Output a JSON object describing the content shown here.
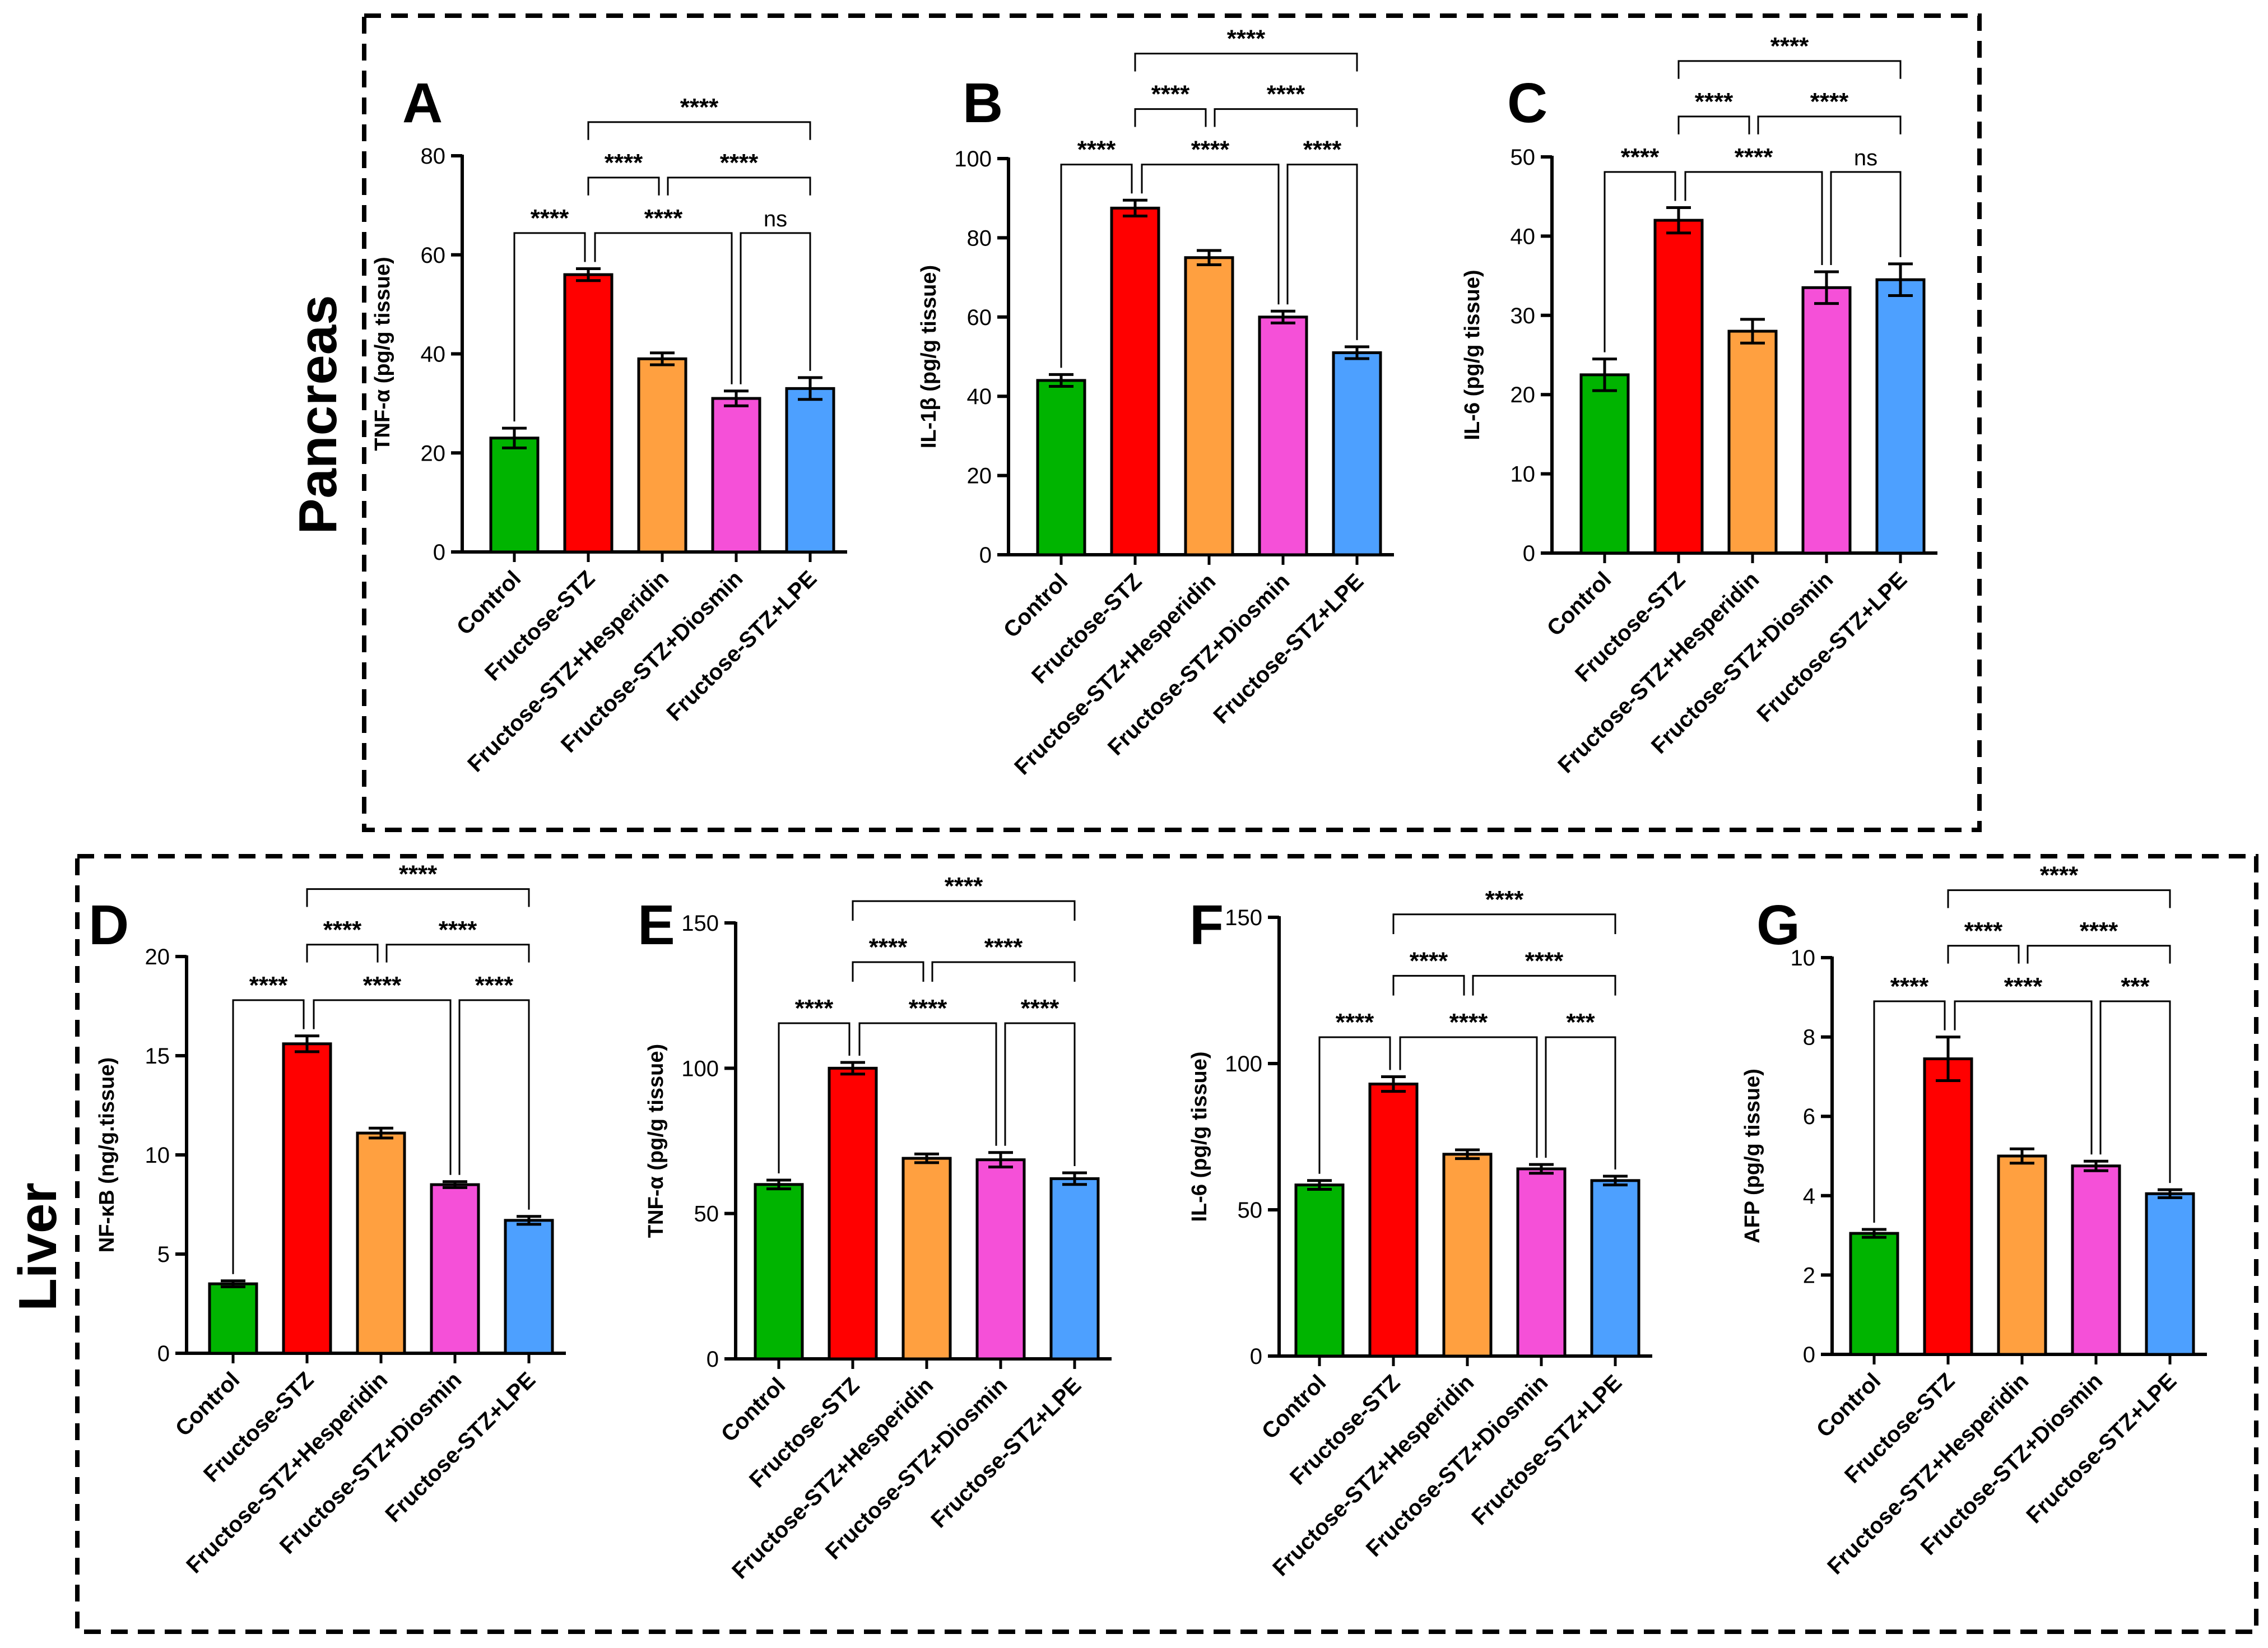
{
  "sections": {
    "pancreas": "Pancreas",
    "liver": "Liver"
  },
  "categories": [
    "Control",
    "Fructose-STZ",
    "Fructose-STZ+Hesperidin",
    "Fructose-STZ+Diosmin",
    "Fructose-STZ+LPE"
  ],
  "colors": {
    "bars": [
      "#00b400",
      "#ff0000",
      "#ffa040",
      "#f550d8",
      "#4da0ff"
    ],
    "axis": "#000000",
    "box": "#000000"
  },
  "chart_data": [
    {
      "panel": "A",
      "type": "bar",
      "section": "pancreas",
      "ylabel": "TNF-α (pg/g tissue)",
      "ylim": [
        0,
        80
      ],
      "yticks": [
        0,
        20,
        40,
        60,
        80
      ],
      "ytick_labels": [
        "0",
        "20",
        "40",
        "60",
        "80"
      ],
      "values": [
        23,
        56,
        39,
        31,
        33
      ],
      "errors": [
        2,
        1.2,
        1.2,
        1.5,
        2.2
      ],
      "brackets": [
        {
          "from": 1,
          "to": 4,
          "label": "****"
        },
        {
          "from": 1,
          "to": 2,
          "label": "****"
        },
        {
          "from": 2,
          "to": 4,
          "label": "****"
        },
        {
          "from": 0,
          "to": 1,
          "label": "****"
        },
        {
          "from": 1,
          "to": 3,
          "label": "****"
        },
        {
          "from": 3,
          "to": 4,
          "label": "ns"
        }
      ]
    },
    {
      "panel": "B",
      "type": "bar",
      "section": "pancreas",
      "ylabel": "IL-1β (pg/g tissue)",
      "ylim": [
        0,
        100
      ],
      "yticks": [
        0,
        20,
        40,
        60,
        80,
        100
      ],
      "ytick_labels": [
        "0",
        "20",
        "40",
        "60",
        "80",
        "100"
      ],
      "values": [
        44,
        87.5,
        75,
        60,
        51
      ],
      "errors": [
        1.5,
        2,
        1.8,
        1.5,
        1.5
      ],
      "brackets": [
        {
          "from": 1,
          "to": 4,
          "label": "****"
        },
        {
          "from": 1,
          "to": 2,
          "label": "****"
        },
        {
          "from": 2,
          "to": 4,
          "label": "****"
        },
        {
          "from": 0,
          "to": 1,
          "label": "****"
        },
        {
          "from": 1,
          "to": 3,
          "label": "****"
        },
        {
          "from": 3,
          "to": 4,
          "label": "****"
        }
      ]
    },
    {
      "panel": "C",
      "type": "bar",
      "section": "pancreas",
      "ylabel": "IL-6 (pg/g tissue)",
      "ylim": [
        0,
        50
      ],
      "yticks": [
        0,
        10,
        20,
        30,
        40,
        50
      ],
      "ytick_labels": [
        "0",
        "10",
        "20",
        "30",
        "40",
        "50"
      ],
      "values": [
        22.5,
        42,
        28,
        33.5,
        34.5
      ],
      "errors": [
        2,
        1.6,
        1.5,
        2,
        2
      ],
      "brackets": [
        {
          "from": 1,
          "to": 4,
          "label": "****"
        },
        {
          "from": 1,
          "to": 2,
          "label": "****"
        },
        {
          "from": 2,
          "to": 4,
          "label": "****"
        },
        {
          "from": 0,
          "to": 1,
          "label": "****"
        },
        {
          "from": 1,
          "to": 3,
          "label": "****"
        },
        {
          "from": 3,
          "to": 4,
          "label": "ns"
        }
      ]
    },
    {
      "panel": "D",
      "type": "bar",
      "section": "liver",
      "ylabel": "NF-κB (ng/g.tissue)",
      "ylim": [
        0,
        20
      ],
      "yticks": [
        0,
        5,
        10,
        15,
        20
      ],
      "ytick_labels": [
        "0",
        "5",
        "10",
        "15",
        "20"
      ],
      "values": [
        3.5,
        15.6,
        11.1,
        8.5,
        6.7
      ],
      "errors": [
        0.15,
        0.4,
        0.25,
        0.15,
        0.2
      ],
      "brackets": [
        {
          "from": 1,
          "to": 4,
          "label": "****"
        },
        {
          "from": 1,
          "to": 2,
          "label": "****"
        },
        {
          "from": 2,
          "to": 4,
          "label": "****"
        },
        {
          "from": 0,
          "to": 1,
          "label": "****"
        },
        {
          "from": 1,
          "to": 3,
          "label": "****"
        },
        {
          "from": 3,
          "to": 4,
          "label": "****"
        }
      ]
    },
    {
      "panel": "E",
      "type": "bar",
      "section": "liver",
      "ylabel": "TNF-α (pg/g tissue)",
      "ylim": [
        0,
        150
      ],
      "yticks": [
        0,
        50,
        100,
        150
      ],
      "ytick_labels": [
        "0",
        "50",
        "100",
        "150"
      ],
      "values": [
        60,
        100,
        69,
        68.5,
        62
      ],
      "errors": [
        1.5,
        2,
        1.5,
        2.5,
        2
      ],
      "brackets": [
        {
          "from": 1,
          "to": 4,
          "label": "****"
        },
        {
          "from": 1,
          "to": 2,
          "label": "****"
        },
        {
          "from": 2,
          "to": 4,
          "label": "****"
        },
        {
          "from": 0,
          "to": 1,
          "label": "****"
        },
        {
          "from": 1,
          "to": 3,
          "label": "****"
        },
        {
          "from": 3,
          "to": 4,
          "label": "****"
        }
      ]
    },
    {
      "panel": "F",
      "type": "bar",
      "section": "liver",
      "ylabel": "IL-6 (pg/g tissue)",
      "ylim": [
        0,
        150
      ],
      "yticks": [
        0,
        50,
        100,
        150
      ],
      "ytick_labels": [
        "0",
        "50",
        "100",
        "150"
      ],
      "values": [
        58.5,
        93,
        69,
        64,
        60
      ],
      "errors": [
        1.5,
        2.5,
        1.5,
        1.5,
        1.5
      ],
      "brackets": [
        {
          "from": 1,
          "to": 4,
          "label": "****"
        },
        {
          "from": 1,
          "to": 2,
          "label": "****"
        },
        {
          "from": 2,
          "to": 4,
          "label": "****"
        },
        {
          "from": 0,
          "to": 1,
          "label": "****"
        },
        {
          "from": 1,
          "to": 3,
          "label": "****"
        },
        {
          "from": 3,
          "to": 4,
          "label": "***"
        }
      ]
    },
    {
      "panel": "G",
      "type": "bar",
      "section": "liver",
      "ylabel": "AFP (pg/g tissue)",
      "ylim": [
        0,
        10
      ],
      "yticks": [
        0,
        2,
        4,
        6,
        8,
        10
      ],
      "ytick_labels": [
        "0",
        "2",
        "4",
        "6",
        "8",
        "10"
      ],
      "values": [
        3.05,
        7.45,
        5.0,
        4.75,
        4.05
      ],
      "errors": [
        0.1,
        0.55,
        0.18,
        0.12,
        0.1
      ],
      "brackets": [
        {
          "from": 1,
          "to": 4,
          "label": "****"
        },
        {
          "from": 1,
          "to": 2,
          "label": "****"
        },
        {
          "from": 2,
          "to": 4,
          "label": "****"
        },
        {
          "from": 0,
          "to": 1,
          "label": "****"
        },
        {
          "from": 1,
          "to": 3,
          "label": "****"
        },
        {
          "from": 3,
          "to": 4,
          "label": "***"
        }
      ]
    }
  ]
}
